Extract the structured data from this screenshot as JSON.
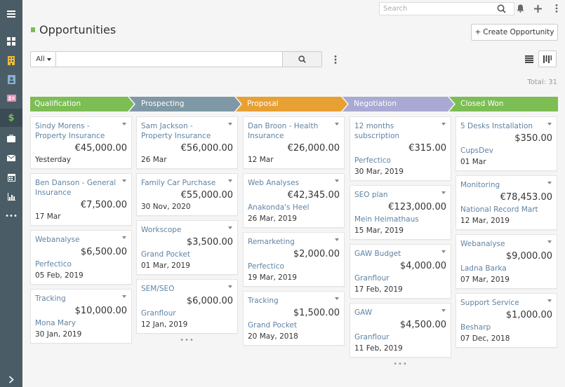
{
  "header": {
    "search_placeholder": "Search",
    "page_title": "Opportunities",
    "create_button": "Create Opportunity",
    "create_plus": "+"
  },
  "filter": {
    "scope": "All",
    "query": "",
    "total": "Total: 31"
  },
  "colors": {
    "sidebar": "#4a5d66",
    "link": "#5f83a4",
    "accent_green": "#7cbd54"
  },
  "sidebar": {
    "items": [
      "menu-icon",
      "dashboard-icon",
      "building-icon",
      "contact-icon",
      "id-card-icon",
      "dollar-icon",
      "briefcase-icon",
      "envelope-icon",
      "calendar-icon",
      "chart-icon",
      "more-icon",
      "expand-icon"
    ]
  },
  "stages": [
    {
      "label": "Qualification",
      "color": "#7cbd54"
    },
    {
      "label": "Prospecting",
      "color": "#7f98a6"
    },
    {
      "label": "Proposal",
      "color": "#e8a033"
    },
    {
      "label": "Negotiation",
      "color": "#a9a9d3"
    },
    {
      "label": "Closed Won",
      "color": "#7cbd54"
    }
  ],
  "columns": [
    {
      "cards": [
        {
          "name": "Sindy Morens - Property Insurance",
          "amount": "€45,000.00",
          "account": "",
          "date": "Yesterday"
        },
        {
          "name": "Ben Danson - General Insurance",
          "amount": "€7,500.00",
          "account": "",
          "date": "17 Mar"
        },
        {
          "name": "Webanalyse",
          "amount": "$6,500.00",
          "account": "Perfectico",
          "date": "05 Feb, 2019"
        },
        {
          "name": "Tracking",
          "amount": "$10,000.00",
          "account": "Mona Mary",
          "date": "30 Jan, 2019"
        }
      ],
      "more": ""
    },
    {
      "cards": [
        {
          "name": "Sam Jackson - Property Insurance",
          "amount": "€56,000.00",
          "account": "",
          "date": "26 Mar"
        },
        {
          "name": "Family Car Purchase",
          "amount": "€55,000.00",
          "account": "",
          "date": "30 Nov, 2020"
        },
        {
          "name": "Workscope",
          "amount": "$3,500.00",
          "account": "Grand Pocket",
          "date": "01 Mar, 2019"
        },
        {
          "name": "SEM/SEO",
          "amount": "$6,000.00",
          "account": "Granflour",
          "date": "12 Jan, 2019"
        }
      ],
      "more": "•••"
    },
    {
      "cards": [
        {
          "name": "Dan Broon - Health Insurance",
          "amount": "€26,000.00",
          "account": "",
          "date": "12 Mar"
        },
        {
          "name": "Web Analyses",
          "amount": "€42,345.00",
          "account": "Anakonda's Heel",
          "date": "26 Mar, 2019"
        },
        {
          "name": "Remarketing",
          "amount": "$2,000.00",
          "account": "Perfectico",
          "date": "19 Mar, 2019"
        },
        {
          "name": "Tracking",
          "amount": "$1,500.00",
          "account": "Grand Pocket",
          "date": "20 May, 2018"
        }
      ],
      "more": ""
    },
    {
      "cards": [
        {
          "name": "12 months subscription",
          "amount": "€315.00",
          "account": "Perfectico",
          "date": "30 Mar, 2019"
        },
        {
          "name": "SEO plan",
          "amount": "€123,000.00",
          "account": "Mein Heimathaus",
          "date": "15 Mar, 2019"
        },
        {
          "name": "GAW Budget",
          "amount": "$4,000.00",
          "account": "Granflour",
          "date": "17 Feb, 2019"
        },
        {
          "name": "GAW",
          "amount": "$4,500.00",
          "account": "Granflour",
          "date": "11 Feb, 2019"
        }
      ],
      "more": "•••"
    },
    {
      "cards": [
        {
          "name": "5 Desks Installation",
          "amount": "$350.00",
          "account": "CupsDev",
          "date": "01 Mar"
        },
        {
          "name": "Monitoring",
          "amount": "€78,453.00",
          "account": "National Record Mart",
          "date": "12 Mar, 2019"
        },
        {
          "name": "Webanalyse",
          "amount": "$9,000.00",
          "account": "Ladna Barka",
          "date": "07 Mar, 2019"
        },
        {
          "name": "Support Service",
          "amount": "$1,000.00",
          "account": "Besharp",
          "date": "07 Dec, 2018"
        }
      ],
      "more": ""
    }
  ]
}
